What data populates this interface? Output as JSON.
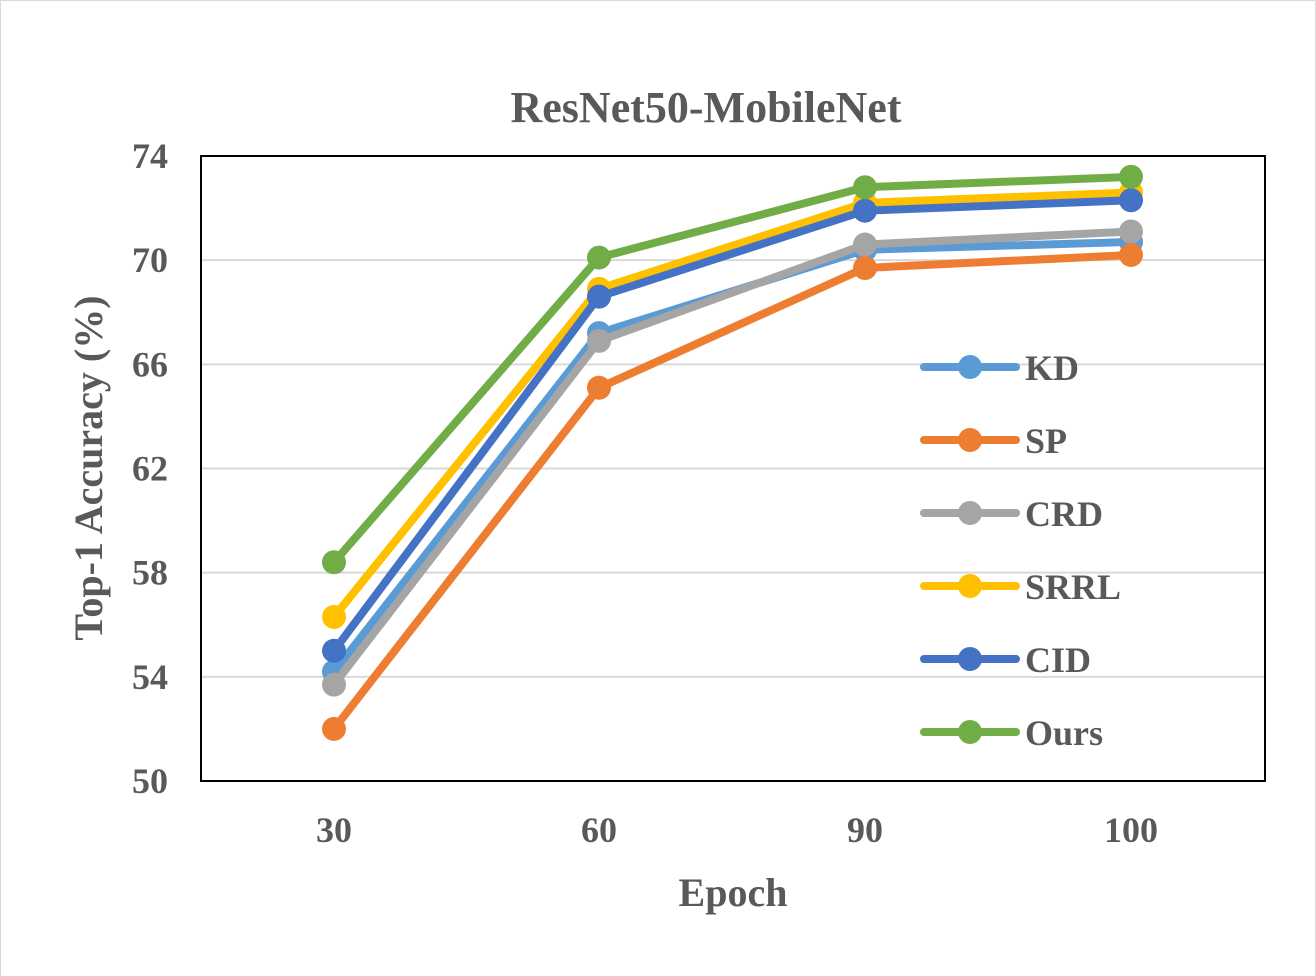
{
  "chart_data": {
    "type": "line",
    "title": "ResNet50-MobileNet",
    "xlabel": "Epoch",
    "ylabel": "Top-1 Accuracy (%)",
    "categories": [
      "30",
      "60",
      "90",
      "100"
    ],
    "ylim": [
      50,
      74
    ],
    "yticks": [
      "50",
      "54",
      "58",
      "62",
      "66",
      "70",
      "74"
    ],
    "grid": true,
    "legend_position": "right",
    "series": [
      {
        "name": "KD",
        "color": "#5B9BD5",
        "values": [
          54.2,
          67.2,
          70.4,
          70.7
        ]
      },
      {
        "name": "SP",
        "color": "#ED7D31",
        "values": [
          52.0,
          65.1,
          69.7,
          70.2
        ]
      },
      {
        "name": "CRD",
        "color": "#A5A5A5",
        "values": [
          53.7,
          66.9,
          70.6,
          71.1
        ]
      },
      {
        "name": "SRRL",
        "color": "#FFC000",
        "values": [
          56.3,
          68.9,
          72.2,
          72.6
        ]
      },
      {
        "name": "CID",
        "color": "#4472C4",
        "values": [
          55.0,
          68.6,
          71.9,
          72.3
        ]
      },
      {
        "name": "Ours",
        "color": "#70AD47",
        "values": [
          58.4,
          70.1,
          72.8,
          73.2
        ]
      }
    ]
  }
}
